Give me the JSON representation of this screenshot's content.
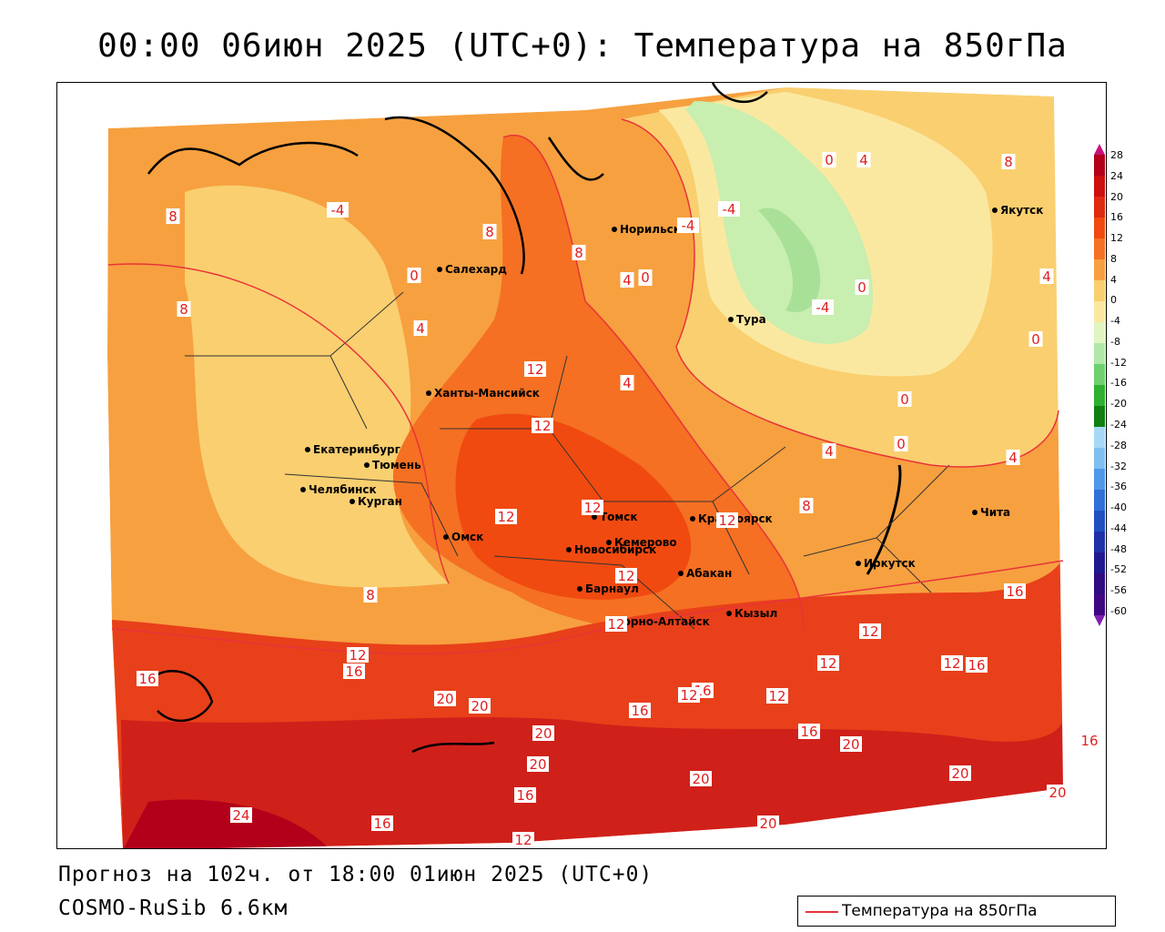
{
  "title": "00:00 06июн 2025 (UTC+0): Температура на 850гПа",
  "forecast_line": "Прогноз на 102ч. от 18:00 01июн 2025 (UTC+0)",
  "model_line": "COSMO-RuSib 6.6км",
  "legend": {
    "label": "Температура на 850гПа",
    "line_color": "#e8333a"
  },
  "color_scale": {
    "labels": [
      "28",
      "24",
      "20",
      "16",
      "12",
      "8",
      "4",
      "0",
      "-4",
      "-8",
      "-12",
      "-16",
      "-20",
      "-24",
      "-28",
      "-32",
      "-36",
      "-40",
      "-44",
      "-48",
      "-52",
      "-56",
      "-60"
    ],
    "colors": [
      "#b3001a",
      "#cc1010",
      "#e02a10",
      "#f04a10",
      "#f57022",
      "#f7a040",
      "#f9cf70",
      "#fbe8a0",
      "#e0f5c0",
      "#b0e8a8",
      "#70d070",
      "#30b030",
      "#108010",
      "#a8d8f8",
      "#80c0f0",
      "#5098e8",
      "#3070d8",
      "#2050c0",
      "#2030a8",
      "#201890",
      "#300c80",
      "#400880"
    ]
  },
  "cities": [
    {
      "name": "Салехард"
    },
    {
      "name": "Норильск"
    },
    {
      "name": "Якутск"
    },
    {
      "name": "Тура"
    },
    {
      "name": "Ханты-Мансийск"
    },
    {
      "name": "Екатеринбург"
    },
    {
      "name": "Тюмень"
    },
    {
      "name": "Челябинск"
    },
    {
      "name": "Курган"
    },
    {
      "name": "Омск"
    },
    {
      "name": "Томск"
    },
    {
      "name": "Новосибирск"
    },
    {
      "name": "Кемерово"
    },
    {
      "name": "Красноярск"
    },
    {
      "name": "Барнаул"
    },
    {
      "name": "Абакан"
    },
    {
      "name": "Горно-Алтайск"
    },
    {
      "name": "Кызыл"
    },
    {
      "name": "Иркутск"
    },
    {
      "name": "Чита"
    }
  ],
  "contour_labels": [
    "8",
    "-4",
    "8",
    "0",
    "4",
    "8",
    "4",
    "0",
    "8",
    "12",
    "8",
    "12",
    "4",
    "12",
    "12",
    "8",
    "12",
    "12",
    "8",
    "12",
    "12",
    "12",
    "16",
    "16",
    "16",
    "20",
    "16",
    "16",
    "16",
    "12",
    "12",
    "12",
    "16",
    "20",
    "20",
    "20",
    "16",
    "20",
    "20",
    "24",
    "16",
    "20",
    "12",
    "20",
    "16",
    "20",
    "0",
    "4",
    "-4",
    "-4",
    "0",
    "-4",
    "0",
    "0",
    "0",
    "4",
    "4",
    "4",
    "0",
    "8",
    "12"
  ]
}
